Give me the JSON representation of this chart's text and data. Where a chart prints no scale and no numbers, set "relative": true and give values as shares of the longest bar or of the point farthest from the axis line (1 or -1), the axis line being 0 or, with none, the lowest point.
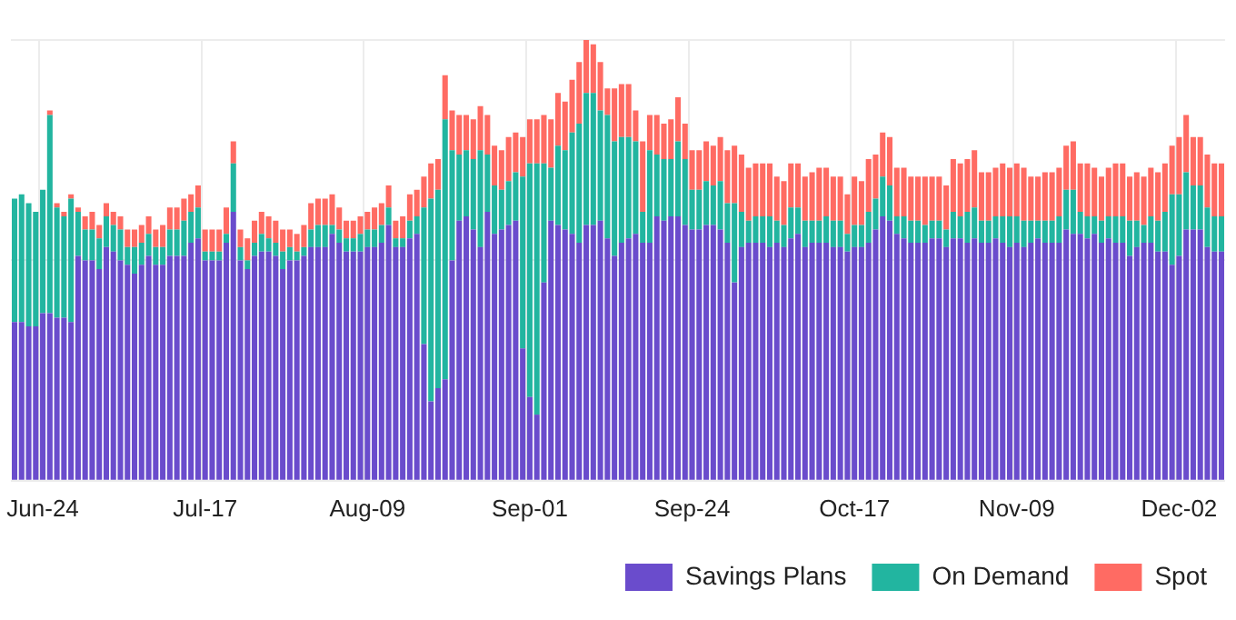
{
  "chart_data": {
    "type": "bar",
    "stacked": true,
    "relative": true,
    "grid": true,
    "legend": "bottom right",
    "categories": [
      null,
      null,
      null,
      null,
      "Jun-24",
      null,
      null,
      null,
      null,
      null,
      null,
      null,
      null,
      null,
      null,
      null,
      null,
      null,
      null,
      null,
      null,
      null,
      null,
      null,
      null,
      null,
      null,
      "Jul-17",
      null,
      null,
      null,
      null,
      null,
      null,
      null,
      null,
      null,
      null,
      null,
      null,
      null,
      null,
      null,
      null,
      null,
      null,
      null,
      null,
      null,
      null,
      "Aug-09",
      null,
      null,
      null,
      null,
      null,
      null,
      null,
      null,
      null,
      null,
      null,
      null,
      null,
      null,
      null,
      null,
      null,
      null,
      null,
      null,
      null,
      null,
      "Sep-01",
      null,
      null,
      null,
      null,
      null,
      null,
      null,
      null,
      null,
      null,
      null,
      null,
      null,
      null,
      null,
      null,
      null,
      null,
      null,
      null,
      null,
      null,
      "Sep-24",
      null,
      null,
      null,
      null,
      null,
      null,
      null,
      null,
      null,
      null,
      null,
      null,
      null,
      null,
      null,
      null,
      null,
      null,
      null,
      null,
      null,
      null,
      "Oct-17",
      null,
      null,
      null,
      null,
      null,
      null,
      null,
      null,
      null,
      null,
      null,
      null,
      null,
      null,
      null,
      null,
      null,
      null,
      null,
      null,
      null,
      null,
      "Nov-09",
      null,
      null,
      null,
      null,
      null,
      null,
      null,
      null,
      null,
      null,
      null,
      null,
      null,
      null,
      null,
      null,
      null,
      null,
      null,
      null,
      null,
      null,
      "Dec-02",
      null,
      null,
      null,
      null,
      null,
      null
    ],
    "series": [
      {
        "name": "Savings Plans",
        "color": "#6a4ccc",
        "values": [
          0.36,
          0.36,
          0.35,
          0.35,
          0.38,
          0.38,
          0.37,
          0.37,
          0.36,
          0.51,
          0.5,
          0.5,
          0.48,
          0.53,
          0.52,
          0.5,
          0.49,
          0.47,
          0.49,
          0.51,
          0.49,
          0.49,
          0.51,
          0.51,
          0.51,
          0.54,
          0.55,
          0.5,
          0.5,
          0.5,
          0.54,
          0.61,
          0.5,
          0.48,
          0.51,
          0.52,
          0.52,
          0.51,
          0.48,
          0.5,
          0.5,
          0.51,
          0.53,
          0.53,
          0.53,
          0.56,
          0.54,
          0.52,
          0.52,
          0.52,
          0.53,
          0.53,
          0.54,
          0.58,
          0.53,
          0.53,
          0.55,
          0.56,
          0.31,
          0.18,
          0.21,
          0.23,
          0.5,
          0.59,
          0.6,
          0.57,
          0.53,
          0.61,
          0.56,
          0.57,
          0.58,
          0.59,
          0.3,
          0.19,
          0.15,
          0.45,
          0.59,
          0.58,
          0.57,
          0.56,
          0.54,
          0.58,
          0.58,
          0.59,
          0.55,
          0.51,
          0.54,
          0.55,
          0.56,
          0.54,
          0.54,
          0.6,
          0.59,
          0.6,
          0.6,
          0.58,
          0.57,
          0.57,
          0.58,
          0.58,
          0.57,
          0.54,
          0.45,
          0.53,
          0.54,
          0.54,
          0.54,
          0.53,
          0.54,
          0.53,
          0.55,
          0.56,
          0.53,
          0.54,
          0.54,
          0.54,
          0.53,
          0.53,
          0.52,
          0.53,
          0.53,
          0.54,
          0.57,
          0.6,
          0.59,
          0.56,
          0.55,
          0.54,
          0.54,
          0.54,
          0.55,
          0.55,
          0.53,
          0.55,
          0.55,
          0.54,
          0.55,
          0.54,
          0.54,
          0.55,
          0.54,
          0.53,
          0.54,
          0.53,
          0.54,
          0.55,
          0.54,
          0.54,
          0.54,
          0.57,
          0.56,
          0.56,
          0.55,
          0.56,
          0.54,
          0.55,
          0.54,
          0.54,
          0.51,
          0.53,
          0.54,
          0.54,
          0.52,
          0.52,
          0.49,
          0.51,
          0.57,
          0.57,
          0.57,
          0.53,
          0.52,
          0.52
        ]
      },
      {
        "name": "On Demand",
        "color": "#22b5a0",
        "values": [
          0.28,
          0.29,
          0.28,
          0.26,
          0.28,
          0.45,
          0.25,
          0.23,
          0.28,
          0.1,
          0.07,
          0.07,
          0.07,
          0.07,
          0.06,
          0.07,
          0.04,
          0.06,
          0.05,
          0.05,
          0.04,
          0.04,
          0.06,
          0.06,
          0.08,
          0.07,
          0.07,
          0.02,
          0.02,
          0.02,
          0.02,
          0.11,
          0.03,
          0.02,
          0.03,
          0.04,
          0.03,
          0.03,
          0.04,
          0.03,
          0.02,
          0.02,
          0.04,
          0.05,
          0.05,
          0.02,
          0.03,
          0.03,
          0.03,
          0.04,
          0.04,
          0.04,
          0.04,
          0.04,
          0.02,
          0.02,
          0.04,
          0.04,
          0.31,
          0.46,
          0.45,
          0.59,
          0.25,
          0.15,
          0.15,
          0.16,
          0.22,
          0.13,
          0.11,
          0.09,
          0.1,
          0.11,
          0.39,
          0.53,
          0.57,
          0.27,
          0.12,
          0.18,
          0.18,
          0.23,
          0.27,
          0.3,
          0.3,
          0.25,
          0.28,
          0.26,
          0.24,
          0.23,
          0.21,
          0.07,
          0.21,
          0.14,
          0.14,
          0.13,
          0.17,
          0.15,
          0.09,
          0.09,
          0.1,
          0.09,
          0.11,
          0.09,
          0.18,
          0.08,
          0.05,
          0.06,
          0.06,
          0.07,
          0.05,
          0.05,
          0.07,
          0.06,
          0.06,
          0.05,
          0.05,
          0.06,
          0.06,
          0.06,
          0.04,
          0.05,
          0.05,
          0.07,
          0.07,
          0.09,
          0.08,
          0.04,
          0.05,
          0.05,
          0.05,
          0.04,
          0.04,
          0.04,
          0.04,
          0.06,
          0.05,
          0.07,
          0.07,
          0.05,
          0.05,
          0.05,
          0.06,
          0.07,
          0.06,
          0.06,
          0.05,
          0.04,
          0.05,
          0.05,
          0.06,
          0.09,
          0.1,
          0.05,
          0.05,
          0.04,
          0.05,
          0.05,
          0.06,
          0.06,
          0.08,
          0.06,
          0.04,
          0.06,
          0.07,
          0.09,
          0.16,
          0.14,
          0.13,
          0.1,
          0.1,
          0.09,
          0.08,
          0.08
        ]
      },
      {
        "name": "Spot",
        "color": "#ff6b63",
        "values": [
          0,
          0,
          0,
          0,
          0,
          0.01,
          0.01,
          0.01,
          0.01,
          0.01,
          0.03,
          0.04,
          0.03,
          0.03,
          0.03,
          0.03,
          0.04,
          0.04,
          0.04,
          0.04,
          0.04,
          0.05,
          0.05,
          0.05,
          0.05,
          0.04,
          0.05,
          0.05,
          0.05,
          0.05,
          0.06,
          0.05,
          0.04,
          0.05,
          0.05,
          0.05,
          0.05,
          0.05,
          0.05,
          0.04,
          0.04,
          0.05,
          0.06,
          0.06,
          0.06,
          0.07,
          0.05,
          0.04,
          0.04,
          0.04,
          0.04,
          0.05,
          0.05,
          0.05,
          0.04,
          0.05,
          0.06,
          0.06,
          0.07,
          0.08,
          0.07,
          0.1,
          0.09,
          0.09,
          0.08,
          0.09,
          0.1,
          0.09,
          0.09,
          0.09,
          0.1,
          0.09,
          0.09,
          0.1,
          0.1,
          0.11,
          0.11,
          0.12,
          0.11,
          0.12,
          0.14,
          0.12,
          0.11,
          0.11,
          0.06,
          0.12,
          0.12,
          0.12,
          0.07,
          0.16,
          0.08,
          0.09,
          0.08,
          0.09,
          0.1,
          0.08,
          0.09,
          0.09,
          0.09,
          0.09,
          0.1,
          0.12,
          0.13,
          0.13,
          0.12,
          0.12,
          0.12,
          0.12,
          0.1,
          0.1,
          0.1,
          0.1,
          0.1,
          0.11,
          0.12,
          0.11,
          0.1,
          0.1,
          0.09,
          0.11,
          0.1,
          0.12,
          0.1,
          0.1,
          0.11,
          0.11,
          0.11,
          0.1,
          0.1,
          0.11,
          0.1,
          0.1,
          0.1,
          0.12,
          0.12,
          0.12,
          0.13,
          0.11,
          0.11,
          0.11,
          0.12,
          0.11,
          0.12,
          0.12,
          0.1,
          0.1,
          0.11,
          0.11,
          0.11,
          0.1,
          0.11,
          0.11,
          0.12,
          0.11,
          0.1,
          0.11,
          0.12,
          0.12,
          0.1,
          0.11,
          0.11,
          0.11,
          0.11,
          0.11,
          0.11,
          0.13,
          0.13,
          0.11,
          0.11,
          0.12,
          0.12,
          0.12
        ]
      }
    ]
  }
}
